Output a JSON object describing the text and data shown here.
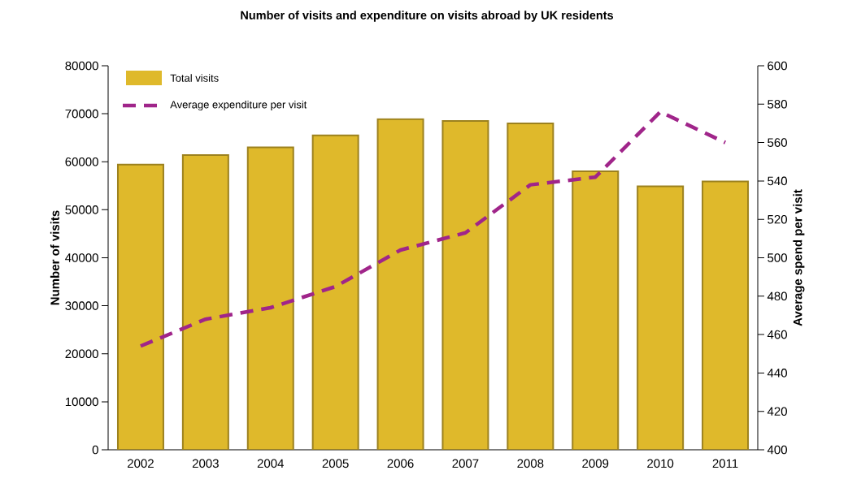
{
  "chart_data": {
    "type": "bar",
    "title": "Number of visits and expenditure on visits abroad by UK residents",
    "ylabel": "Number of visits",
    "y2label": "Average spend per visit",
    "categories": [
      "2002",
      "2003",
      "2004",
      "2005",
      "2006",
      "2007",
      "2008",
      "2009",
      "2010",
      "2011"
    ],
    "series": [
      {
        "name": "Total visits",
        "type": "bar",
        "color": "#dfb92b",
        "values": [
          59400,
          61400,
          63000,
          65500,
          68900,
          68500,
          68000,
          58000,
          54900,
          55900
        ]
      },
      {
        "name": "Average expenditure per visit",
        "type": "line",
        "axis": "y2",
        "line_style": "dashed",
        "color": "#a0258a",
        "values": [
          454,
          468,
          474,
          485,
          504,
          513,
          538,
          542,
          576,
          560
        ]
      }
    ],
    "ylim": [
      0,
      80000
    ],
    "yticks": [
      0,
      10000,
      20000,
      30000,
      40000,
      50000,
      60000,
      70000,
      80000
    ],
    "y2lim": [
      400,
      600
    ],
    "y2ticks": [
      400,
      420,
      440,
      460,
      480,
      500,
      520,
      540,
      560,
      580,
      600
    ],
    "legend": "top left"
  }
}
